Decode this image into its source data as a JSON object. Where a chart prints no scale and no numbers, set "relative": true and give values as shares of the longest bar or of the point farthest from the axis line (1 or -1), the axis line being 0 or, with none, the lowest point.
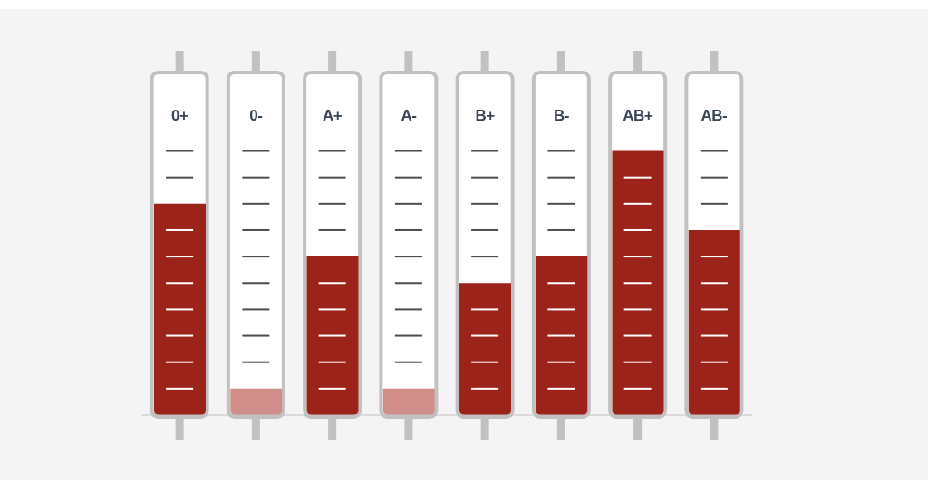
{
  "chart_data": {
    "type": "bar",
    "relative": true,
    "categories": [
      "0+",
      "0-",
      "A+",
      "A-",
      "B+",
      "B-",
      "AB+",
      "AB-"
    ],
    "values": [
      0.8,
      0.1,
      0.6,
      0.1,
      0.5,
      0.6,
      1,
      0.7
    ],
    "colors": [
      "#9c2319",
      "#cf8e89",
      "#9c2319",
      "#cf8e89",
      "#9c2319",
      "#9c2319",
      "#9c2319",
      "#9c2319"
    ]
  }
}
